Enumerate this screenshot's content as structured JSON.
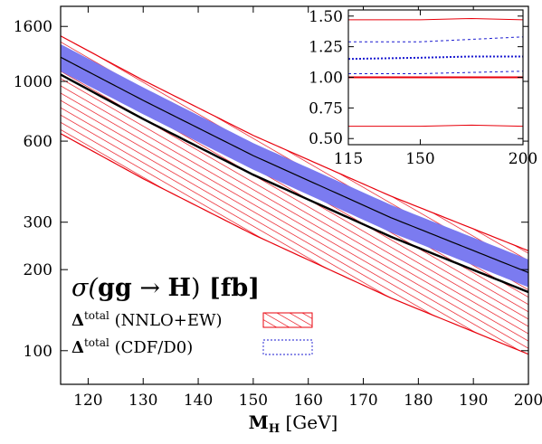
{
  "chart_data": {
    "type": "line",
    "title": "σ(gg → H) [fb]",
    "xlabel": "M_H [GeV]",
    "ylabel": "",
    "x_scale": "linear",
    "y_scale": "log",
    "xlim": [
      115,
      200
    ],
    "ylim": [
      75,
      1900
    ],
    "x_ticks": [
      120,
      130,
      140,
      150,
      160,
      170,
      180,
      190,
      200
    ],
    "y_ticks": [
      100,
      200,
      300,
      600,
      1000,
      1600
    ],
    "legend_placement": "bottom-left",
    "x": [
      115,
      130,
      150,
      175,
      200
    ],
    "series": [
      {
        "name": "Δ^total (NNLO+EW)",
        "style": "red-hatched-band",
        "central": [
          1060,
          725,
          450,
          265,
          165
        ],
        "upper": [
          1475,
          1010,
          630,
          375,
          235
        ],
        "lower": [
          640,
          435,
          270,
          157,
          97
        ]
      },
      {
        "name": "Δ^total (CDF/D0)",
        "style": "blue-filled-band",
        "central": [
          1230,
          850,
          530,
          312,
          195
        ],
        "upper": [
          1375,
          950,
          590,
          348,
          218
        ],
        "lower": [
          1090,
          755,
          470,
          275,
          172
        ]
      }
    ],
    "legend": [
      {
        "label": "Δ^total (NNLO+EW)",
        "swatch": "red-hatch"
      },
      {
        "label": "Δ^total (CDF/D0)",
        "swatch": "blue-dashed"
      }
    ],
    "colors": {
      "red": "#e8000b",
      "blue": "#7b7bf0",
      "black": "#000000",
      "dark_blue": "#1a1ad0"
    },
    "inset": {
      "type": "line",
      "xlim": [
        115,
        200
      ],
      "ylim": [
        0.45,
        1.55
      ],
      "x_ticks": [
        115,
        150,
        200
      ],
      "y_ticks": [
        0.5,
        0.75,
        1.0,
        1.25,
        1.5
      ],
      "x": [
        115,
        150,
        175,
        200
      ],
      "lines": [
        {
          "name": "red upper",
          "values": [
            1.47,
            1.47,
            1.48,
            1.47
          ]
        },
        {
          "name": "red central",
          "values": [
            1.0,
            1.0,
            1.0,
            1.0
          ]
        },
        {
          "name": "red lower",
          "values": [
            0.6,
            0.6,
            0.61,
            0.6
          ]
        },
        {
          "name": "blue upper",
          "values": [
            1.29,
            1.29,
            1.31,
            1.33
          ]
        },
        {
          "name": "blue central",
          "values": [
            1.15,
            1.16,
            1.17,
            1.17
          ]
        },
        {
          "name": "blue lower",
          "values": [
            1.03,
            1.03,
            1.04,
            1.05
          ]
        }
      ]
    }
  },
  "labels": {
    "xlabel_main": "M",
    "xlabel_sub": "H",
    "xlabel_unit": " [GeV]",
    "title_sigma": "σ(",
    "title_gg": "gg",
    "title_arrow": " → ",
    "title_H": "H",
    "title_close": ")",
    "title_fb": " [fb]",
    "legend1_delta": "Δ",
    "legend1_sup": "total",
    "legend1_text": " (NNLO+EW)",
    "legend2_delta": "Δ",
    "legend2_sup": "total",
    "legend2_text": " (CDF/D0)"
  }
}
